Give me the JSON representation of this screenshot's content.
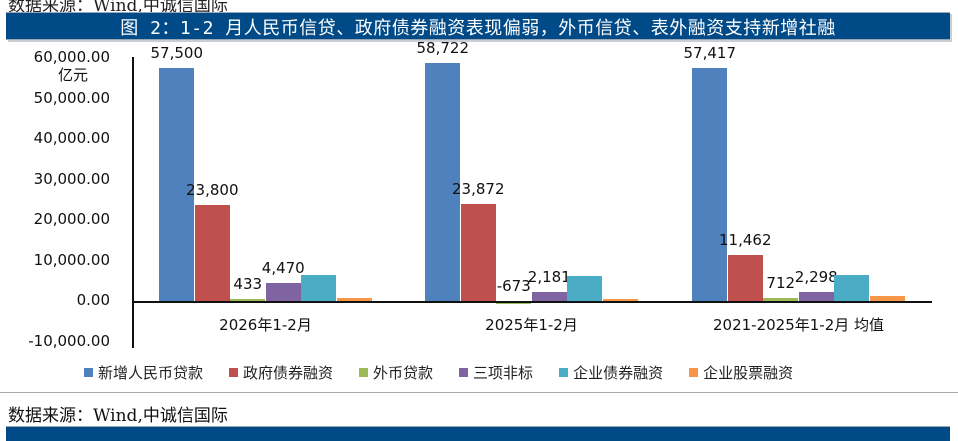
{
  "header": {
    "top_cut_text": "数据来源：Wind,中诚信国际",
    "title": "图 2：1-2 月人民币信贷、政府债券融资表现偏弱，外币信贷、表外融资支持新增社融"
  },
  "axis": {
    "unit": "亿元",
    "y_ticks": [
      "60,000.00",
      "50,000.00",
      "40,000.00",
      "30,000.00",
      "20,000.00",
      "10,000.00",
      "0.00",
      "-10,000.00"
    ]
  },
  "legend": [
    {
      "label": "新增人民币贷款",
      "color": "#4f81bd"
    },
    {
      "label": "政府债券融资",
      "color": "#c0504d"
    },
    {
      "label": "外币贷款",
      "color": "#9bbb59"
    },
    {
      "label": "三项非标",
      "color": "#8064a2"
    },
    {
      "label": "企业债券融资",
      "color": "#4bacc6"
    },
    {
      "label": "企业股票融资",
      "color": "#f79646"
    }
  ],
  "chart_data": {
    "type": "bar",
    "title": "图 2：1-2 月人民币信贷、政府债券融资表现偏弱，外币信贷、表外融资支持新增社融",
    "xlabel": "",
    "ylabel": "亿元",
    "ylim": [
      -10000,
      60000
    ],
    "grid": false,
    "legend_position": "bottom",
    "categories": [
      "2026年1-2月",
      "2025年1-2月",
      "2021-2025年1-2月 均值"
    ],
    "series": [
      {
        "name": "新增人民币贷款",
        "color": "#4f81bd",
        "values": [
          57500,
          58722,
          57417
        ],
        "labels": [
          "57,500",
          "58,722",
          "57,417"
        ]
      },
      {
        "name": "政府债券融资",
        "color": "#c0504d",
        "values": [
          23800,
          23872,
          11462
        ],
        "labels": [
          "23,800",
          "23,872",
          "11,462"
        ]
      },
      {
        "name": "外币贷款",
        "color": "#9bbb59",
        "values": [
          433,
          -673,
          712
        ],
        "labels": [
          "433",
          "-673",
          "712"
        ]
      },
      {
        "name": "三项非标",
        "color": "#8064a2",
        "values": [
          4470,
          2181,
          2298
        ],
        "labels": [
          "4,470",
          "2,181",
          "2,298"
        ]
      },
      {
        "name": "企业债券融资",
        "color": "#4bacc6",
        "values": [
          6400,
          6200,
          6500
        ],
        "labels": [
          "",
          "",
          ""
        ]
      },
      {
        "name": "企业股票融资",
        "color": "#f79646",
        "values": [
          700,
          500,
          1300
        ],
        "labels": [
          "",
          "",
          ""
        ]
      }
    ]
  },
  "footer": {
    "source": "数据来源：Wind,中诚信国际"
  }
}
